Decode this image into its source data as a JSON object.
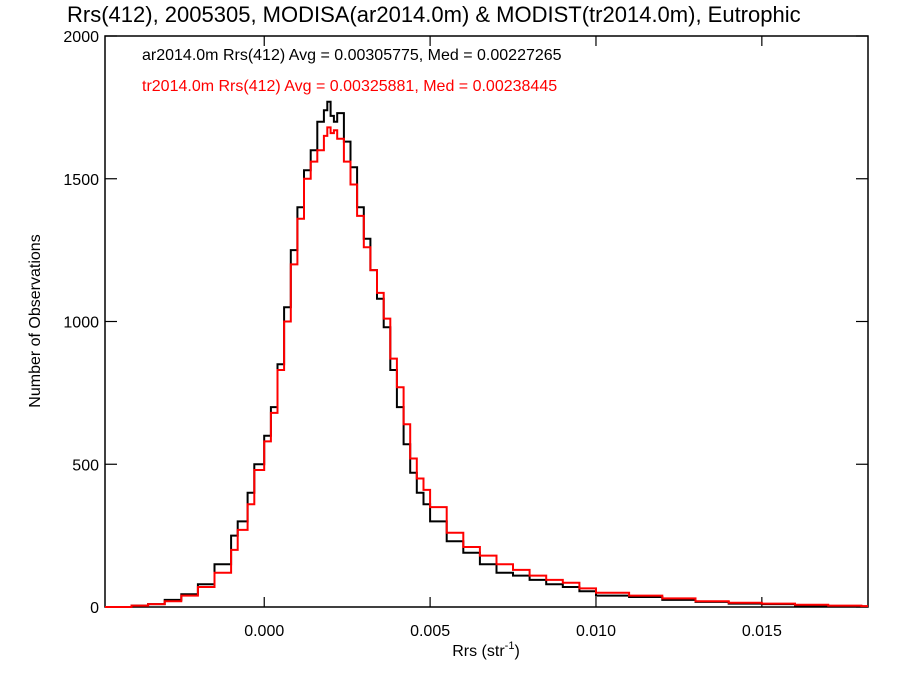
{
  "chart_data": {
    "type": "line",
    "step": true,
    "title": "Rrs(412), 2005305, MODISA(ar2014.0m) & MODIST(tr2014.0m), Eutrophic",
    "xlabel": "Rrs (str",
    "xlabel_sup": "-1",
    "xlabel_end": ")",
    "ylabel": "Number of Observations",
    "xlim": [
      -0.0048,
      0.0182
    ],
    "ylim": [
      0,
      2000
    ],
    "xticks": [
      0.0,
      0.005,
      0.01,
      0.015
    ],
    "xtick_labels": [
      "0.000",
      "0.005",
      "0.010",
      "0.015"
    ],
    "yticks": [
      0,
      500,
      1000,
      1500,
      2000
    ],
    "ytick_labels": [
      "0",
      "500",
      "1000",
      "1500",
      "2000"
    ],
    "grid": false,
    "legend_position": "top-left",
    "series": [
      {
        "name": "ar2014.0m Rrs(412) Avg = 0.00305775, Med = 0.00227265",
        "color": "#000000",
        "x": [
          -0.0048,
          -0.004,
          -0.0035,
          -0.003,
          -0.0025,
          -0.002,
          -0.0015,
          -0.001,
          -0.0008,
          -0.0005,
          -0.0003,
          0.0,
          0.0002,
          0.0004,
          0.0006,
          0.0008,
          0.001,
          0.0012,
          0.0014,
          0.0016,
          0.0018,
          0.0019,
          0.002,
          0.0021,
          0.0022,
          0.0024,
          0.0026,
          0.0028,
          0.003,
          0.0032,
          0.0034,
          0.0036,
          0.0038,
          0.004,
          0.0042,
          0.0044,
          0.0046,
          0.0048,
          0.005,
          0.0055,
          0.006,
          0.0065,
          0.007,
          0.0075,
          0.008,
          0.0085,
          0.009,
          0.0095,
          0.01,
          0.011,
          0.012,
          0.013,
          0.014,
          0.015,
          0.016,
          0.017,
          0.018
        ],
        "y": [
          0,
          5,
          10,
          25,
          45,
          80,
          150,
          250,
          300,
          400,
          500,
          600,
          700,
          850,
          1050,
          1250,
          1400,
          1530,
          1600,
          1700,
          1740,
          1770,
          1720,
          1700,
          1730,
          1630,
          1540,
          1400,
          1290,
          1180,
          1080,
          980,
          830,
          700,
          570,
          470,
          400,
          360,
          300,
          230,
          190,
          150,
          120,
          110,
          95,
          80,
          70,
          55,
          40,
          35,
          25,
          18,
          12,
          10,
          5,
          3,
          2
        ]
      },
      {
        "name": "tr2014.0m Rrs(412) Avg = 0.00325881, Med = 0.00238445",
        "color": "#ff0000",
        "x": [
          -0.0048,
          -0.004,
          -0.0035,
          -0.003,
          -0.0025,
          -0.002,
          -0.0015,
          -0.001,
          -0.0008,
          -0.0005,
          -0.0003,
          0.0,
          0.0002,
          0.0004,
          0.0006,
          0.0008,
          0.001,
          0.0012,
          0.0014,
          0.0016,
          0.0018,
          0.0019,
          0.002,
          0.0021,
          0.0022,
          0.0024,
          0.0026,
          0.0028,
          0.003,
          0.0032,
          0.0034,
          0.0036,
          0.0038,
          0.004,
          0.0042,
          0.0044,
          0.0046,
          0.0048,
          0.005,
          0.0055,
          0.006,
          0.0065,
          0.007,
          0.0075,
          0.008,
          0.0085,
          0.009,
          0.0095,
          0.01,
          0.011,
          0.012,
          0.013,
          0.014,
          0.015,
          0.016,
          0.017,
          0.018
        ],
        "y": [
          0,
          5,
          10,
          20,
          40,
          70,
          120,
          200,
          270,
          360,
          480,
          580,
          680,
          830,
          1000,
          1200,
          1360,
          1500,
          1560,
          1600,
          1650,
          1680,
          1660,
          1670,
          1640,
          1560,
          1480,
          1370,
          1260,
          1180,
          1100,
          1010,
          870,
          770,
          640,
          520,
          450,
          410,
          350,
          260,
          210,
          180,
          150,
          130,
          110,
          95,
          85,
          65,
          50,
          40,
          30,
          20,
          15,
          12,
          8,
          5,
          3
        ]
      }
    ]
  }
}
